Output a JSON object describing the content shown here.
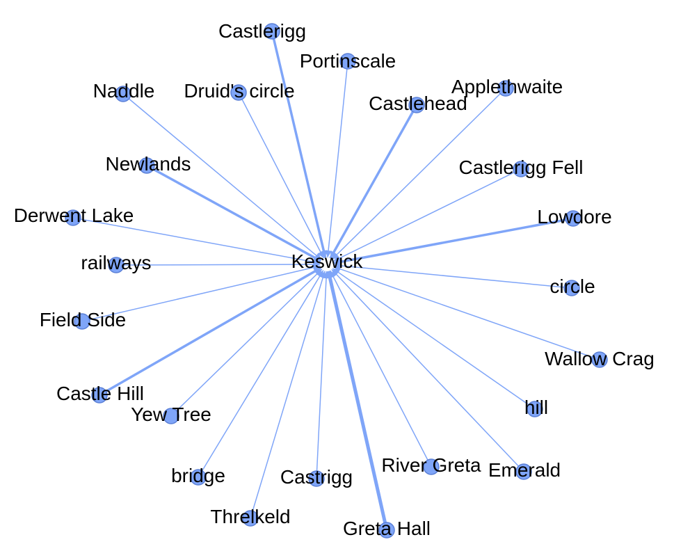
{
  "graph": {
    "center": "Keswick",
    "colors": {
      "node": "#7fa5f8",
      "edge": "#7fa5f8",
      "label": "#000000"
    },
    "nodes": [
      {
        "id": "castlerigg",
        "label": "Castlerigg",
        "weight": "heavy"
      },
      {
        "id": "portinscale",
        "label": "Portinscale",
        "weight": "light"
      },
      {
        "id": "naddle",
        "label": "Naddle",
        "weight": "light"
      },
      {
        "id": "druids-circle",
        "label": "Druid's circle",
        "weight": "light"
      },
      {
        "id": "castlehead",
        "label": "Castlehead",
        "weight": "heavy"
      },
      {
        "id": "applethwaite",
        "label": "Applethwaite",
        "weight": "light"
      },
      {
        "id": "newlands",
        "label": "Newlands",
        "weight": "heavy"
      },
      {
        "id": "castlerigg-fell",
        "label": "Castlerigg Fell",
        "weight": "light"
      },
      {
        "id": "derwent-lake",
        "label": "Derwent Lake",
        "weight": "light"
      },
      {
        "id": "lowdore",
        "label": "Lowdore",
        "weight": "heavy"
      },
      {
        "id": "railways",
        "label": "railways",
        "weight": "light"
      },
      {
        "id": "circle",
        "label": "circle",
        "weight": "light"
      },
      {
        "id": "field-side",
        "label": "Field Side",
        "weight": "light"
      },
      {
        "id": "wallow-crag",
        "label": "Wallow Crag",
        "weight": "light"
      },
      {
        "id": "castle-hill",
        "label": "Castle Hill",
        "weight": "heavy"
      },
      {
        "id": "yew-tree",
        "label": "Yew Tree",
        "weight": "light"
      },
      {
        "id": "hill",
        "label": "hill",
        "weight": "light"
      },
      {
        "id": "bridge",
        "label": "bridge",
        "weight": "light"
      },
      {
        "id": "castrigg",
        "label": "Castrigg",
        "weight": "light"
      },
      {
        "id": "river-greta",
        "label": "River Greta",
        "weight": "light"
      },
      {
        "id": "emerald",
        "label": "Emerald",
        "weight": "light"
      },
      {
        "id": "threlkeld",
        "label": "Threlkeld",
        "weight": "light"
      },
      {
        "id": "greta-hall",
        "label": "Greta Hall",
        "weight": "heaviest"
      }
    ]
  }
}
